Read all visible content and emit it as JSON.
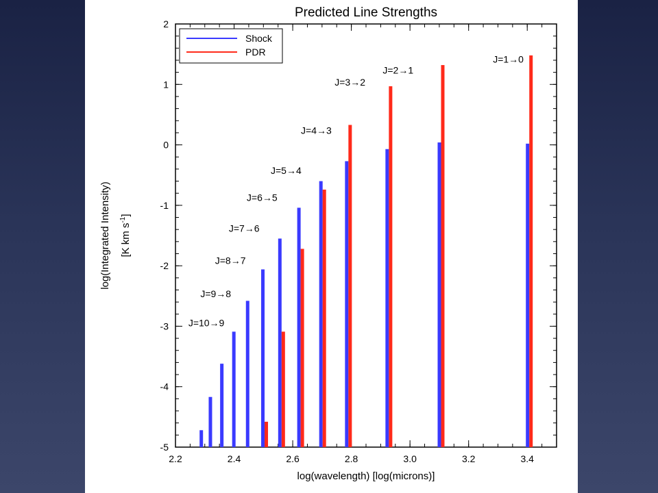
{
  "chart_data": {
    "type": "bar",
    "title": "Predicted Line Strengths",
    "xlabel": "log(wavelength)  [log(microns)]",
    "ylabel_main": "log(Integrated Intensity)",
    "ylabel_units": "[K km s",
    "ylabel_units_sup": "-1",
    "ylabel_units_close": "]",
    "xlim": [
      2.2,
      3.5
    ],
    "ylim": [
      -5,
      2
    ],
    "xticks": [
      2.2,
      2.4,
      2.6,
      2.8,
      3.0,
      3.2,
      3.4
    ],
    "xtick_labels": [
      "2.2",
      "2.4",
      "2.6",
      "2.8",
      "3.0",
      "3.2",
      "3.4"
    ],
    "yticks": [
      -5,
      -4,
      -3,
      -2,
      -1,
      0,
      1,
      2
    ],
    "ytick_labels": [
      "-5",
      "-4",
      "-3",
      "-2",
      "-1",
      "0",
      "1",
      "2"
    ],
    "legend_placement": "top-left",
    "series": [
      {
        "name": "Shock",
        "color": "#3a3aff",
        "x": [
          2.294,
          2.325,
          2.364,
          2.405,
          2.452,
          2.504,
          2.562,
          2.627,
          2.702,
          2.79,
          2.928,
          3.106,
          3.407
        ],
        "values": [
          -4.72,
          -4.17,
          -3.62,
          -3.09,
          -2.58,
          -2.06,
          -1.55,
          -1.04,
          -0.6,
          -0.27,
          -0.07,
          0.04,
          0.02
        ]
      },
      {
        "name": "PDR",
        "color": "#ff2a1a",
        "x": [
          2.504,
          2.562,
          2.627,
          2.702,
          2.79,
          2.928,
          3.106,
          3.407
        ],
        "values": [
          -4.58,
          -3.09,
          -1.72,
          -0.74,
          0.33,
          0.97,
          1.32,
          1.48
        ]
      }
    ],
    "annotations": [
      {
        "text": "J=10→9",
        "x": 2.244,
        "y": -3.0
      },
      {
        "text": "J=9→8",
        "x": 2.285,
        "y": -2.52
      },
      {
        "text": "J=8→7",
        "x": 2.335,
        "y": -1.97
      },
      {
        "text": "J=7→6",
        "x": 2.382,
        "y": -1.44
      },
      {
        "text": "J=6→5",
        "x": 2.443,
        "y": -0.93
      },
      {
        "text": "J=5→4",
        "x": 2.525,
        "y": -0.48
      },
      {
        "text": "J=4→3",
        "x": 2.628,
        "y": 0.18
      },
      {
        "text": "J=3→2",
        "x": 2.743,
        "y": 0.98
      },
      {
        "text": "J=2→1",
        "x": 2.907,
        "y": 1.18
      },
      {
        "text": "J=1→0",
        "x": 3.283,
        "y": 1.36
      }
    ]
  }
}
